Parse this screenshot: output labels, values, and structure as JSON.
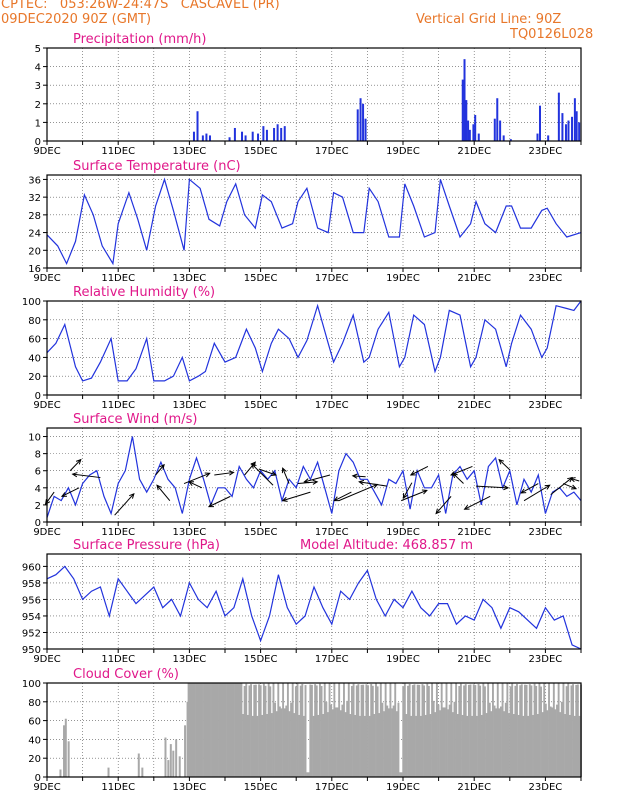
{
  "header": {
    "line1": "CPTEC:   053:26W-24:47S   CASCAVEL (PR)",
    "line2": "09DEC2020 90Z (GMT)",
    "right1": "Vertical Grid Line: 90Z",
    "right2": "TQ0126L028"
  },
  "colors": {
    "series": "#2233dd",
    "cloud": "#a8a8a8",
    "title": "#e0188a",
    "header": "#e8772a"
  },
  "chart_data": [
    {
      "id": "precip",
      "type": "bar",
      "title": "Precipitation (mm/h)",
      "ylim": [
        0,
        5
      ],
      "yticks": [
        0,
        1,
        2,
        3,
        4,
        5
      ],
      "xticks": [
        "9DEC",
        "11DEC",
        "13DEC",
        "15DEC",
        "17DEC",
        "19DEC",
        "21DEC",
        "23DEC"
      ],
      "xlim": [
        9,
        24
      ],
      "bars": [
        [
          13.1,
          0.5
        ],
        [
          13.2,
          1.6
        ],
        [
          13.35,
          0.3
        ],
        [
          13.45,
          0.4
        ],
        [
          13.55,
          0.3
        ],
        [
          14.1,
          0.2
        ],
        [
          14.25,
          0.7
        ],
        [
          14.45,
          0.5
        ],
        [
          14.55,
          0.3
        ],
        [
          14.75,
          0.5
        ],
        [
          14.9,
          0.4
        ],
        [
          15.05,
          0.8
        ],
        [
          15.15,
          0.6
        ],
        [
          15.35,
          0.7
        ],
        [
          15.45,
          0.9
        ],
        [
          15.55,
          0.7
        ],
        [
          15.65,
          0.8
        ],
        [
          17.7,
          1.7
        ],
        [
          17.78,
          2.3
        ],
        [
          17.85,
          2.0
        ],
        [
          17.92,
          1.2
        ],
        [
          20.65,
          3.3
        ],
        [
          20.7,
          4.4
        ],
        [
          20.75,
          2.2
        ],
        [
          20.8,
          1.1
        ],
        [
          20.85,
          0.6
        ],
        [
          20.95,
          0.9
        ],
        [
          21.0,
          1.4
        ],
        [
          21.1,
          0.4
        ],
        [
          21.55,
          1.2
        ],
        [
          21.62,
          2.3
        ],
        [
          21.7,
          1.1
        ],
        [
          21.8,
          0.3
        ],
        [
          22.0,
          0.1
        ],
        [
          22.75,
          0.4
        ],
        [
          22.82,
          1.9
        ],
        [
          23.05,
          0.3
        ],
        [
          23.35,
          2.6
        ],
        [
          23.45,
          1.5
        ],
        [
          23.55,
          0.9
        ],
        [
          23.62,
          1.1
        ],
        [
          23.72,
          1.3
        ],
        [
          23.8,
          2.3
        ],
        [
          23.85,
          1.6
        ],
        [
          23.92,
          1.0
        ]
      ]
    },
    {
      "id": "temp",
      "type": "line",
      "title": "Surface Temperature (nC)",
      "ylim": [
        16,
        37
      ],
      "yticks": [
        16,
        20,
        24,
        28,
        32,
        36
      ],
      "xticks": [
        "9DEC",
        "11DEC",
        "13DEC",
        "15DEC",
        "17DEC",
        "19DEC",
        "21DEC",
        "23DEC"
      ],
      "xlim": [
        9,
        24
      ],
      "x": [
        9.0,
        9.3,
        9.55,
        9.8,
        10.05,
        10.3,
        10.55,
        10.85,
        11.0,
        11.3,
        11.55,
        11.8,
        12.05,
        12.3,
        12.55,
        12.85,
        13.0,
        13.3,
        13.55,
        13.85,
        14.05,
        14.3,
        14.55,
        14.85,
        15.05,
        15.3,
        15.6,
        15.9,
        16.05,
        16.3,
        16.6,
        16.9,
        17.05,
        17.3,
        17.6,
        17.9,
        18.05,
        18.3,
        18.6,
        18.9,
        19.05,
        19.3,
        19.6,
        19.9,
        20.05,
        20.3,
        20.6,
        20.9,
        21.05,
        21.3,
        21.6,
        21.9,
        22.05,
        22.3,
        22.6,
        22.9,
        23.05,
        23.3,
        23.6,
        24.0
      ],
      "y": [
        23.5,
        21,
        17,
        22,
        32.5,
        28,
        21,
        17,
        26,
        33,
        27,
        20,
        30,
        36,
        29,
        20,
        36,
        34,
        27,
        25.5,
        31,
        35,
        28,
        25,
        32.5,
        31,
        25,
        26,
        31,
        34,
        25,
        24,
        33,
        32,
        24,
        24,
        34,
        31,
        23,
        23,
        35,
        30,
        23,
        24,
        36,
        30,
        23,
        26,
        31,
        26,
        24,
        30,
        30,
        25,
        25,
        29,
        29.5,
        26,
        23,
        24
      ]
    },
    {
      "id": "humidity",
      "type": "line",
      "title": "Relative Humidity (%)",
      "ylim": [
        0,
        100
      ],
      "yticks": [
        0,
        20,
        40,
        60,
        80,
        100
      ],
      "xticks": [
        "9DEC",
        "11DEC",
        "13DEC",
        "15DEC",
        "17DEC",
        "19DEC",
        "21DEC",
        "23DEC"
      ],
      "xlim": [
        9,
        24
      ],
      "x": [
        9.0,
        9.25,
        9.5,
        9.8,
        10.0,
        10.25,
        10.5,
        10.8,
        11.0,
        11.25,
        11.5,
        11.8,
        12.0,
        12.3,
        12.55,
        12.8,
        13.0,
        13.25,
        13.45,
        13.7,
        14.0,
        14.3,
        14.6,
        14.85,
        15.05,
        15.3,
        15.5,
        15.8,
        16.05,
        16.3,
        16.6,
        16.9,
        17.05,
        17.3,
        17.6,
        17.9,
        18.05,
        18.3,
        18.6,
        18.9,
        19.05,
        19.3,
        19.6,
        19.9,
        20.05,
        20.3,
        20.6,
        20.9,
        21.05,
        21.3,
        21.6,
        21.9,
        22.05,
        22.3,
        22.6,
        22.9,
        23.05,
        23.3,
        23.6,
        23.8,
        24.0
      ],
      "y": [
        45,
        55,
        75,
        30,
        15,
        18,
        35,
        60,
        15,
        15,
        28,
        60,
        15,
        15,
        20,
        40,
        15,
        20,
        25,
        55,
        35,
        40,
        70,
        50,
        25,
        55,
        70,
        60,
        40,
        58,
        95,
        55,
        35,
        55,
        85,
        35,
        40,
        70,
        88,
        30,
        40,
        85,
        75,
        25,
        40,
        90,
        85,
        30,
        40,
        80,
        70,
        30,
        55,
        85,
        70,
        40,
        50,
        95,
        92,
        90,
        100
      ]
    },
    {
      "id": "wind",
      "type": "line",
      "title": "Surface Wind (m/s)",
      "ylim": [
        0,
        11
      ],
      "yticks": [
        0,
        2,
        4,
        6,
        8,
        10
      ],
      "xticks": [
        "9DEC",
        "11DEC",
        "13DEC",
        "15DEC",
        "17DEC",
        "19DEC",
        "21DEC",
        "23DEC"
      ],
      "xlim": [
        9,
        24
      ],
      "x": [
        9.0,
        9.2,
        9.4,
        9.6,
        9.8,
        10.0,
        10.2,
        10.4,
        10.6,
        10.8,
        11.0,
        11.2,
        11.4,
        11.6,
        11.8,
        12.0,
        12.2,
        12.4,
        12.6,
        12.8,
        13.0,
        13.2,
        13.4,
        13.6,
        13.8,
        14.0,
        14.2,
        14.4,
        14.6,
        14.8,
        15.0,
        15.2,
        15.4,
        15.6,
        15.8,
        16.0,
        16.2,
        16.4,
        16.6,
        16.8,
        17.0,
        17.2,
        17.4,
        17.6,
        17.8,
        18.0,
        18.2,
        18.4,
        18.6,
        18.8,
        19.0,
        19.2,
        19.4,
        19.6,
        19.8,
        20.0,
        20.2,
        20.4,
        20.6,
        20.8,
        21.0,
        21.2,
        21.4,
        21.6,
        21.8,
        22.0,
        22.2,
        22.4,
        22.6,
        22.8,
        23.0,
        23.2,
        23.4,
        23.6,
        23.8,
        24.0
      ],
      "y": [
        0.5,
        3,
        2.5,
        4,
        2,
        4.5,
        5.5,
        6,
        3,
        1,
        4.5,
        6,
        10,
        5,
        3.5,
        5,
        7,
        5,
        4,
        1,
        5,
        7.5,
        5,
        2,
        4,
        4,
        3,
        6.5,
        5,
        4,
        6,
        5,
        6,
        2.5,
        5,
        4,
        6.5,
        5,
        7,
        4,
        1,
        6,
        8,
        7,
        5,
        5,
        3.5,
        2,
        5,
        4.5,
        6,
        1.5,
        6,
        4,
        4,
        5.5,
        1,
        5.5,
        6.5,
        5,
        6,
        2,
        6.5,
        7.5,
        4,
        6,
        2,
        5,
        3.5,
        5.5,
        1,
        3.5,
        4,
        3,
        3.5,
        2.5
      ],
      "arrows": [
        [
          9.2,
          3.5,
          -0.4,
          -1.4
        ],
        [
          9.65,
          6,
          0.5,
          1.3
        ],
        [
          9.9,
          4,
          -0.8,
          -1.0
        ],
        [
          10.5,
          5.2,
          -1.3,
          0.4
        ],
        [
          10.9,
          0.8,
          0.9,
          2.5
        ],
        [
          12.05,
          5.5,
          0.4,
          1.2
        ],
        [
          12.45,
          2.5,
          -0.6,
          1.8
        ],
        [
          12.85,
          4.5,
          1.2,
          1.2
        ],
        [
          13.35,
          4.0,
          -0.6,
          0.7
        ],
        [
          13.7,
          5.5,
          0.9,
          0.3
        ],
        [
          14.15,
          3.0,
          -1.0,
          -1.2
        ],
        [
          14.55,
          5.5,
          0.5,
          1.5
        ],
        [
          14.95,
          6.2,
          0.8,
          -0.7
        ],
        [
          15.35,
          4.3,
          -1.0,
          2.5
        ],
        [
          15.8,
          4.5,
          -0.3,
          1.8
        ],
        [
          16.05,
          4.5,
          0.9,
          0.2
        ],
        [
          16.4,
          3.5,
          -1.3,
          -1.0
        ],
        [
          16.95,
          5.5,
          -1.2,
          -0.8
        ],
        [
          17.2,
          2.5,
          1.8,
          1.9
        ],
        [
          17.55,
          3.5,
          -0.8,
          -1.0
        ],
        [
          17.95,
          5.3,
          -0.6,
          0.1
        ],
        [
          18.55,
          4.2,
          -1.3,
          0.5
        ],
        [
          18.95,
          2.5,
          1.2,
          1.2
        ],
        [
          19.25,
          4.6,
          -0.4,
          -1.8
        ],
        [
          19.7,
          6.5,
          -0.8,
          -1.0
        ],
        [
          20.35,
          3.0,
          -0.7,
          -2.0
        ],
        [
          20.7,
          4.5,
          -0.5,
          1.2
        ],
        [
          20.95,
          6.5,
          -1.0,
          -1.0
        ],
        [
          21.05,
          4.2,
          1.5,
          -0.2
        ],
        [
          21.45,
          3.0,
          -1.2,
          -1.5
        ],
        [
          22.0,
          6.1,
          -0.5,
          1.2
        ],
        [
          22.4,
          2.5,
          1.2,
          1.8
        ],
        [
          22.8,
          4.5,
          -0.8,
          -1.1
        ],
        [
          23.15,
          3.2,
          1.0,
          2.0
        ],
        [
          23.5,
          4.5,
          0.6,
          -0.6
        ],
        [
          23.95,
          4.8,
          -0.4,
          0.3
        ]
      ]
    },
    {
      "id": "pressure",
      "type": "line",
      "title": "Surface Pressure (hPa)",
      "annotation": "Model Altitude: 468.857 m",
      "ylim": [
        950,
        961.5
      ],
      "yticks": [
        950,
        952,
        954,
        956,
        958,
        960
      ],
      "xticks": [
        "9DEC",
        "11DEC",
        "13DEC",
        "15DEC",
        "17DEC",
        "19DEC",
        "21DEC",
        "23DEC"
      ],
      "xlim": [
        9,
        24
      ],
      "x": [
        9.0,
        9.25,
        9.5,
        9.75,
        10.0,
        10.25,
        10.5,
        10.75,
        11.0,
        11.25,
        11.5,
        11.75,
        12.0,
        12.25,
        12.5,
        12.75,
        13.0,
        13.25,
        13.5,
        13.75,
        14.0,
        14.25,
        14.5,
        14.75,
        15.0,
        15.25,
        15.5,
        15.75,
        16.0,
        16.25,
        16.5,
        16.75,
        17.0,
        17.25,
        17.5,
        17.75,
        18.0,
        18.25,
        18.5,
        18.75,
        19.0,
        19.25,
        19.5,
        19.75,
        20.0,
        20.25,
        20.5,
        20.75,
        21.0,
        21.25,
        21.5,
        21.75,
        22.0,
        22.25,
        22.5,
        22.75,
        23.0,
        23.25,
        23.5,
        23.75,
        24.0
      ],
      "y": [
        958.5,
        959,
        960,
        958.5,
        956,
        957,
        957.5,
        954,
        958.5,
        957,
        955.5,
        956.5,
        957.5,
        955,
        956,
        954,
        958,
        956,
        955,
        957,
        954,
        955,
        958.5,
        954,
        951,
        954,
        959,
        955,
        953,
        954,
        957.5,
        955,
        953,
        957,
        956,
        958,
        959.5,
        956,
        954,
        956,
        955,
        957,
        955,
        954,
        955.5,
        955.5,
        953,
        954,
        953.5,
        956,
        955,
        952.5,
        955,
        954.5,
        953.5,
        952.5,
        955,
        953.5,
        954,
        950.5,
        950
      ]
    },
    {
      "id": "cloud",
      "type": "bar",
      "title": "Cloud Cover (%)",
      "ylim": [
        0,
        100
      ],
      "yticks": [
        0,
        20,
        40,
        60,
        80,
        100
      ],
      "xticks": [
        "9DEC",
        "11DEC",
        "13DEC",
        "15DEC",
        "17DEC",
        "19DEC",
        "21DEC",
        "23DEC"
      ],
      "xlim": [
        9,
        24
      ],
      "bars": [
        [
          9.35,
          8
        ],
        [
          9.45,
          55
        ],
        [
          9.5,
          62
        ],
        [
          9.58,
          38
        ],
        [
          10.7,
          10
        ],
        [
          11.55,
          25
        ],
        [
          11.65,
          10
        ],
        [
          12.3,
          42
        ],
        [
          12.38,
          18
        ],
        [
          12.45,
          35
        ],
        [
          12.52,
          28
        ],
        [
          12.6,
          40
        ],
        [
          12.7,
          22
        ],
        [
          12.85,
          55
        ],
        [
          12.92,
          80
        ]
      ],
      "fill_from": 12.95,
      "fill_value": 100
    }
  ]
}
